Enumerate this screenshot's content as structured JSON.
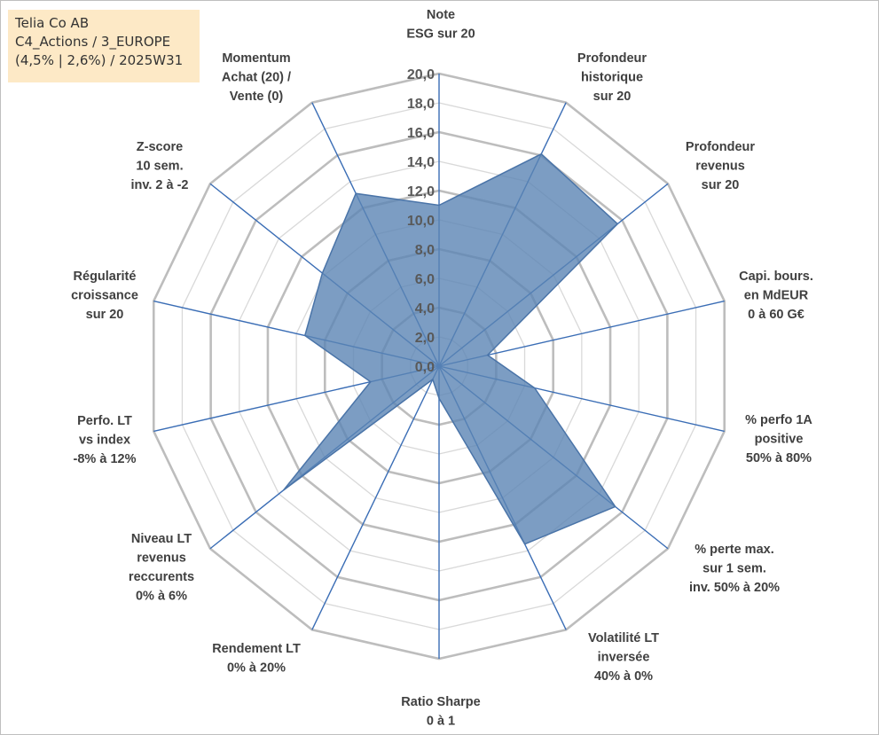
{
  "info": {
    "line1": "Telia Co AB",
    "line2": "C4_Actions / 3_EUROPE",
    "line3": "(4,5% | 2,6%) / 2025W31"
  },
  "chart_data": {
    "type": "radar",
    "rmin": 0,
    "rmax": 20,
    "tick_step": 2,
    "tick_labels": [
      "0,0",
      "2,0",
      "4,0",
      "6,0",
      "8,0",
      "10,0",
      "12,0",
      "14,0",
      "16,0",
      "18,0",
      "20,0"
    ],
    "axes": [
      [
        "Note",
        "ESG sur 20"
      ],
      [
        "Profondeur",
        "historique",
        "sur 20"
      ],
      [
        "Profondeur",
        "revenus",
        "sur 20"
      ],
      [
        "Capi. bours.",
        "en MdEUR",
        "0 à 60 G€"
      ],
      [
        "% perfo 1A",
        "positive",
        "50% à 80%"
      ],
      [
        "% perte max.",
        "sur 1 sem.",
        "inv. 50% à 20%"
      ],
      [
        "Volatilité LT",
        "inversée",
        "40% à 0%"
      ],
      [
        "Ratio Sharpe",
        "0 à 1"
      ],
      [
        "Rendement LT",
        "0% à 20%"
      ],
      [
        "Niveau LT",
        "revenus",
        "reccurents",
        "0% à 6%"
      ],
      [
        "Perfo. LT",
        "vs index",
        "-8% à 12%"
      ],
      [
        "Régularité",
        "croissance",
        "sur 20"
      ],
      [
        "Z-score",
        "10 sem.",
        "inv. 2 à -2"
      ],
      [
        "Momentum",
        "Achat (20) /",
        "Vente (0)"
      ]
    ],
    "series": [
      {
        "values": [
          11.0,
          16.1,
          15.6,
          3.4,
          6.7,
          15.4,
          13.5,
          2.2,
          1.0,
          13.6,
          4.8,
          9.4,
          10.2,
          13.1
        ]
      }
    ],
    "colors": {
      "fill": "#5b84b4",
      "fill_opacity": 0.8,
      "outline": "#4a74a8",
      "grid": "#c8c8c8",
      "grid_major": "#bdbdbd",
      "spoke": "#3a6db5"
    },
    "legend": "none"
  }
}
